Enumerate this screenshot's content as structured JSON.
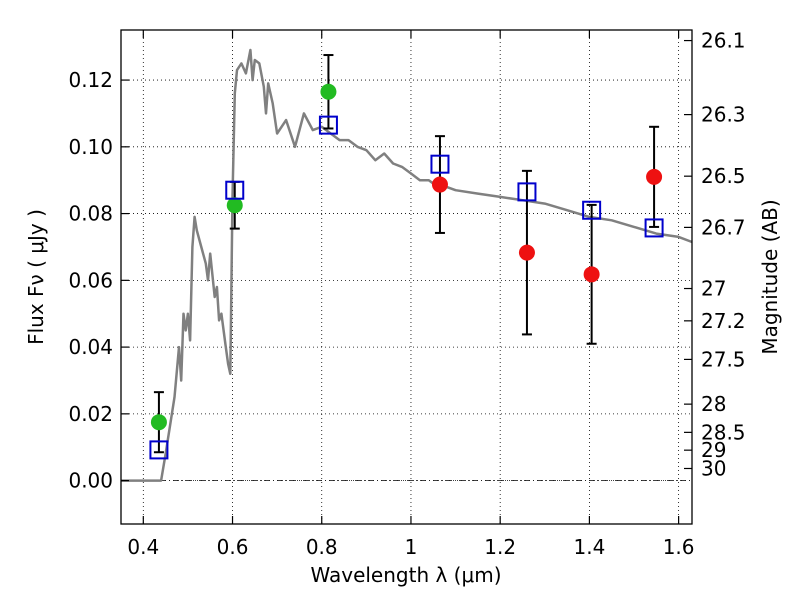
{
  "chart_data": {
    "type": "scatter",
    "xlabel": "Wavelength  λ (μm)",
    "ylabel": "Flux  Fν  ( μJy )",
    "ylabel_right": "Magnitude (AB)",
    "xlim": [
      0.35,
      1.63
    ],
    "ylim": [
      -0.013,
      0.135
    ],
    "x_ticks": [
      0.4,
      0.6,
      0.8,
      1.0,
      1.2,
      1.4,
      1.6
    ],
    "x_tick_labels": [
      "0.4",
      "0.6",
      "0.8",
      "1",
      "1.2",
      "1.4",
      "1.6"
    ],
    "y_ticks": [
      0.0,
      0.02,
      0.04,
      0.06,
      0.08,
      0.1,
      0.12
    ],
    "y_tick_labels": [
      "0.00",
      "0.02",
      "0.04",
      "0.06",
      "0.08",
      "0.10",
      "0.12"
    ],
    "mag_ticks": [
      "26.1",
      "26.3",
      "26.5",
      "26.7",
      "27",
      "27.2",
      "27.5",
      "28",
      "28.5",
      "29",
      "30"
    ],
    "grid": true,
    "colors": {
      "model": "#808080",
      "detection": "#22bb22",
      "nondetection": "#ee1111",
      "model_flux": "#0000cc",
      "errorbar": "#000000"
    },
    "model_spectrum": {
      "x": [
        0.35,
        0.43,
        0.44,
        0.45,
        0.47,
        0.48,
        0.485,
        0.49,
        0.495,
        0.5,
        0.505,
        0.51,
        0.515,
        0.52,
        0.53,
        0.54,
        0.545,
        0.55,
        0.56,
        0.565,
        0.57,
        0.575,
        0.58,
        0.585,
        0.59,
        0.595,
        0.6,
        0.605,
        0.61,
        0.62,
        0.63,
        0.64,
        0.645,
        0.65,
        0.66,
        0.67,
        0.675,
        0.68,
        0.69,
        0.7,
        0.72,
        0.74,
        0.76,
        0.78,
        0.8,
        0.82,
        0.84,
        0.86,
        0.88,
        0.9,
        0.92,
        0.94,
        0.96,
        0.98,
        1.0,
        1.02,
        1.04,
        1.06,
        1.08,
        1.1,
        1.15,
        1.2,
        1.25,
        1.3,
        1.35,
        1.4,
        1.45,
        1.5,
        1.55,
        1.6,
        1.63
      ],
      "y": [
        0.0,
        0.0,
        0.0,
        0.008,
        0.025,
        0.04,
        0.03,
        0.05,
        0.045,
        0.05,
        0.042,
        0.07,
        0.079,
        0.075,
        0.07,
        0.065,
        0.06,
        0.068,
        0.055,
        0.058,
        0.048,
        0.05,
        0.045,
        0.04,
        0.035,
        0.032,
        0.085,
        0.116,
        0.123,
        0.125,
        0.122,
        0.129,
        0.12,
        0.126,
        0.125,
        0.118,
        0.11,
        0.119,
        0.113,
        0.104,
        0.108,
        0.1,
        0.11,
        0.105,
        0.106,
        0.104,
        0.102,
        0.102,
        0.1,
        0.099,
        0.096,
        0.098,
        0.095,
        0.094,
        0.092,
        0.09,
        0.09,
        0.088,
        0.088,
        0.087,
        0.086,
        0.085,
        0.084,
        0.083,
        0.081,
        0.079,
        0.078,
        0.076,
        0.074,
        0.073,
        0.0715
      ]
    },
    "series": [
      {
        "role": "detection",
        "points": [
          {
            "x": 0.435,
            "y": 0.0175,
            "yerr": 0.009
          },
          {
            "x": 0.605,
            "y": 0.0825,
            "yerr": 0.007
          },
          {
            "x": 0.815,
            "y": 0.1165,
            "yerr": 0.011
          }
        ]
      },
      {
        "role": "nondetection",
        "points": [
          {
            "x": 1.065,
            "y": 0.0887,
            "yerr": 0.0145
          },
          {
            "x": 1.26,
            "y": 0.0683,
            "yerr": 0.0245
          },
          {
            "x": 1.405,
            "y": 0.0618,
            "yerr": 0.0208
          },
          {
            "x": 1.545,
            "y": 0.091,
            "yerr": 0.015
          }
        ]
      },
      {
        "role": "model_flux",
        "points": [
          {
            "x": 0.435,
            "y": 0.0092
          },
          {
            "x": 0.605,
            "y": 0.087
          },
          {
            "x": 0.815,
            "y": 0.1065
          },
          {
            "x": 1.065,
            "y": 0.0948
          },
          {
            "x": 1.26,
            "y": 0.0865
          },
          {
            "x": 1.405,
            "y": 0.081
          },
          {
            "x": 1.545,
            "y": 0.0757
          }
        ]
      }
    ]
  }
}
